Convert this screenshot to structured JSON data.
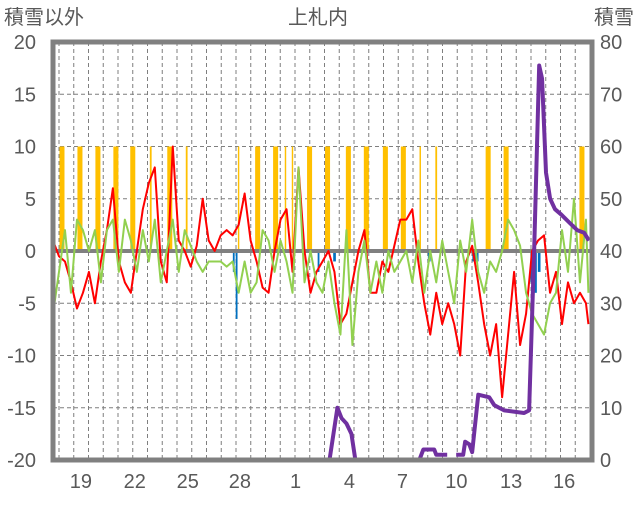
{
  "chart_data": {
    "type": "line",
    "title": "上札内",
    "ylabel_left": "積雪以外",
    "ylabel_right": "積雪",
    "ylim_left": [
      -20,
      20
    ],
    "ylim_right": [
      0,
      80
    ],
    "yticks_left": [
      "20",
      "15",
      "10",
      "5",
      "0",
      "-5",
      "-10",
      "-15",
      "-20"
    ],
    "yticks_right": [
      "80",
      "70",
      "60",
      "50",
      "40",
      "30",
      "20",
      "10",
      "0"
    ],
    "x_unit": "days from axis start",
    "xlim": [
      0,
      30
    ],
    "xticks": [
      {
        "label": "19",
        "x": 1.55
      },
      {
        "label": "22",
        "x": 4.55
      },
      {
        "label": "25",
        "x": 7.5
      },
      {
        "label": "28",
        "x": 10.4
      },
      {
        "label": "1",
        "x": 13.5
      },
      {
        "label": "4",
        "x": 16.5
      },
      {
        "label": "7",
        "x": 19.45
      },
      {
        "label": "10",
        "x": 22.45
      },
      {
        "label": "13",
        "x": 25.5
      },
      {
        "label": "16",
        "x": 28.45
      }
    ],
    "grid": true,
    "colors": {
      "red": "#ff0000",
      "green": "#92d050",
      "purple": "#7030a0",
      "orange": "#ffc000",
      "blue": "#0070c0",
      "frame": "#808080"
    },
    "red_series": {
      "axis": "left",
      "x_step": 0.3333,
      "values": [
        1,
        -0.5,
        -1,
        -3,
        -5.5,
        -4,
        -2,
        -5,
        -1,
        2,
        6,
        -1,
        -3,
        -4,
        0,
        4,
        6.5,
        8,
        -1,
        -3,
        10,
        1,
        0,
        -1.5,
        0.5,
        5,
        1,
        0,
        1.5,
        2,
        1.5,
        2.5,
        5.5,
        1,
        -1,
        -3.5,
        -4,
        0,
        3,
        4,
        -2,
        8,
        0,
        -4,
        -2,
        -1,
        0,
        -2,
        -7,
        -6,
        -3,
        0,
        2,
        -4,
        -4,
        -1,
        -2,
        0.5,
        3,
        3,
        4,
        -1,
        -5,
        -8,
        -4,
        -7,
        -5,
        -7,
        -10,
        -1,
        0.5,
        -3,
        -7,
        -10,
        -7,
        -14,
        -8,
        -2,
        -9,
        -6,
        0,
        1,
        1.5,
        -4,
        -2,
        -7,
        -3,
        -5,
        -4,
        -5,
        -7
      ]
    },
    "green_series": {
      "axis": "left",
      "x_step": 0.3333,
      "values": [
        -6,
        -2,
        2,
        -4,
        3,
        2,
        0,
        2,
        -3,
        2,
        3,
        -2,
        3,
        1,
        -2,
        2,
        -1,
        3,
        -3,
        0,
        3,
        -2,
        2,
        0.5,
        -1,
        -2,
        -1,
        -1,
        -1,
        -1.5,
        -1,
        -4,
        -1,
        -4,
        -3,
        2,
        1,
        -2,
        1,
        -1,
        -4,
        8,
        -3,
        0,
        -3,
        -4,
        -1,
        -5,
        -8,
        2,
        -9,
        -2,
        1,
        -4,
        -1,
        -4,
        0,
        -2,
        -1,
        0,
        -3,
        1,
        -4,
        0,
        -3,
        1,
        -2,
        -5,
        1,
        -2,
        3,
        -2,
        -4,
        -1,
        -2,
        0,
        3,
        2,
        0.5,
        -4,
        -6,
        -7,
        -8,
        -5,
        -4,
        2,
        -2,
        5,
        -3,
        3,
        -4
      ]
    },
    "purple_series": {
      "axis": "right",
      "points": [
        [
          0,
          0
        ],
        [
          15.39,
          0
        ],
        [
          15.83,
          10
        ],
        [
          16.06,
          8
        ],
        [
          16.33,
          7
        ],
        [
          16.61,
          5
        ],
        [
          16.83,
          0
        ],
        [
          20.39,
          0
        ],
        [
          20.61,
          2
        ],
        [
          21.22,
          2
        ],
        [
          21.33,
          1
        ],
        [
          21.94,
          1
        ],
        null,
        [
          22.44,
          1
        ],
        [
          22.83,
          1
        ],
        [
          22.94,
          3.5
        ],
        [
          23.17,
          3
        ],
        [
          23.33,
          1.5
        ],
        [
          23.67,
          12.5
        ],
        [
          24.28,
          12
        ],
        [
          24.56,
          10.5
        ],
        [
          24.83,
          10
        ],
        [
          25.11,
          9.5
        ],
        [
          26.22,
          9
        ],
        [
          26.5,
          9.5
        ],
        [
          26.78,
          40
        ],
        [
          27.06,
          75.5
        ],
        [
          27.22,
          73
        ],
        [
          27.44,
          55
        ],
        [
          27.67,
          50
        ],
        [
          27.94,
          48
        ],
        [
          28.28,
          47
        ],
        [
          28.72,
          45.5
        ],
        [
          29.17,
          44
        ],
        [
          29.56,
          43.5
        ],
        [
          29.83,
          42
        ]
      ]
    },
    "orange_bars": {
      "axis": "left",
      "bars": [
        [
          0.5,
          10,
          0.28
        ],
        [
          1.5,
          10,
          0.28
        ],
        [
          2.5,
          10,
          0.28
        ],
        [
          3.5,
          10,
          0.28
        ],
        [
          4.44,
          10,
          0.28
        ],
        [
          5.44,
          10,
          0.1
        ],
        [
          6.5,
          10,
          0.28
        ],
        [
          7.44,
          10,
          0.1
        ],
        [
          10.33,
          10,
          0.08
        ],
        [
          11.39,
          10,
          0.28
        ],
        [
          12.39,
          10,
          0.28
        ],
        [
          12.94,
          10,
          0.08
        ],
        [
          13.33,
          10,
          0.08
        ],
        [
          14.28,
          10,
          0.28
        ],
        [
          15.28,
          10,
          0.28
        ],
        [
          16.44,
          10,
          0.28
        ],
        [
          17.44,
          10,
          0.28
        ],
        [
          18.5,
          10,
          0.28
        ],
        [
          19.5,
          10,
          0.28
        ],
        [
          20.44,
          10,
          0.08
        ],
        [
          21.33,
          10,
          0.1
        ],
        [
          24.22,
          10,
          0.28
        ],
        [
          25.22,
          10,
          0.28
        ],
        [
          29.44,
          10,
          0.28
        ]
      ]
    },
    "blue_bars": {
      "axis": "left",
      "bars": [
        [
          10.06,
          -2,
          0.1
        ],
        [
          10.22,
          -6.5,
          0.1
        ],
        [
          14.78,
          -2,
          0.1
        ],
        [
          15.67,
          -1,
          0.15
        ],
        [
          20.94,
          -1,
          0.15
        ],
        [
          23.44,
          -1,
          0.2
        ],
        [
          23.61,
          -1,
          0.15
        ],
        [
          26.67,
          -3,
          0.2
        ],
        [
          26.83,
          -4,
          0.2
        ],
        [
          27.06,
          -2,
          0.15
        ]
      ]
    }
  }
}
